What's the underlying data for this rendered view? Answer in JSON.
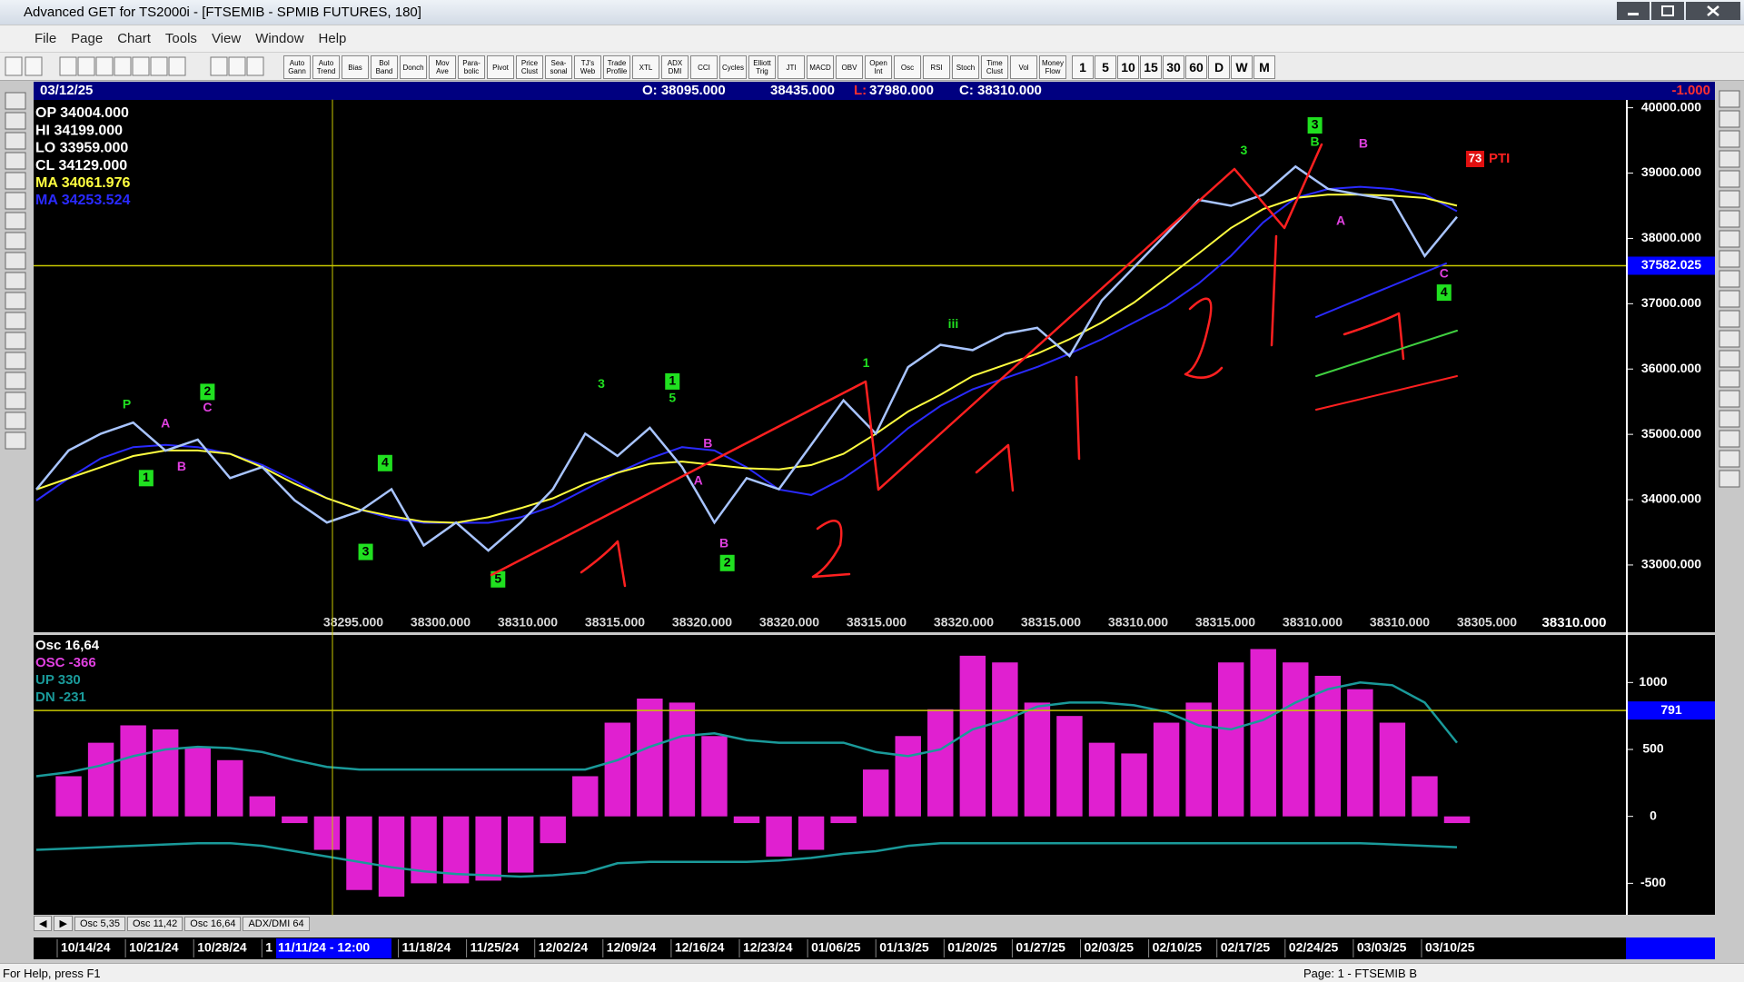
{
  "window": {
    "title": "Advanced GET for TS2000i - [FTSEMIB - SPMIB FUTURES, 180]"
  },
  "menu": [
    "File",
    "Page",
    "Chart",
    "Tools",
    "View",
    "Window",
    "Help"
  ],
  "toolbar": [
    "Auto Gann",
    "Auto Trend",
    "Bias",
    "Bol Band",
    "Donch",
    "Mov Ave",
    "Para-bolic",
    "Pivot",
    "Price Clust",
    "Sea-sonal",
    "TJ's Web",
    "Trade Profile",
    "XTL",
    "ADX DMI",
    "CCI",
    "Cycles",
    "Elliott Trig",
    "JTI",
    "MACD",
    "OBV",
    "Open Int",
    "Osc",
    "RSI",
    "Stoch",
    "Time Clust",
    "Vol",
    "Money Flow"
  ],
  "timeframes": [
    "1",
    "5",
    "10",
    "15",
    "30",
    "60",
    "D",
    "W",
    "M"
  ],
  "header": {
    "date": "03/12/25",
    "open": "O: 38095.000",
    "high": "38435.000",
    "low_label": "L:",
    "low": "37980.000",
    "close": "C: 38310.000",
    "change": "-1.000"
  },
  "price_pane": {
    "readout": [
      {
        "text": "OP 34004.000",
        "color": "#ffffff"
      },
      {
        "text": "HI 34199.000",
        "color": "#ffffff"
      },
      {
        "text": "LO 33959.000",
        "color": "#ffffff"
      },
      {
        "text": "CL 34129.000",
        "color": "#ffffff"
      },
      {
        "text": "MA 34061.976",
        "color": "#ffff40"
      },
      {
        "text": "MA 34253.524",
        "color": "#2a2aff"
      }
    ],
    "ylim": [
      31970,
      40120
    ],
    "yticks": [
      {
        "value": 33000,
        "label": "33000.000"
      },
      {
        "value": 34000,
        "label": "34000.000"
      },
      {
        "value": 35000,
        "label": "35000.000"
      },
      {
        "value": 36000,
        "label": "36000.000"
      },
      {
        "value": 37000,
        "label": "37000.000"
      },
      {
        "value": 38000,
        "label": "38000.000"
      },
      {
        "value": 39000,
        "label": "39000.000"
      },
      {
        "value": 40000,
        "label": "40000.000"
      }
    ],
    "close": {
      "color": "#a8c4ff",
      "values": [
        34157,
        34753,
        35010,
        35180,
        34750,
        34920,
        34330,
        34500,
        33990,
        33650,
        33820,
        34160,
        33300,
        33650,
        33220,
        33650,
        34160,
        35010,
        34670,
        35100,
        34500,
        33650,
        34330,
        34160,
        34840,
        35520,
        35010,
        36030,
        36370,
        36290,
        36540,
        36630,
        36200,
        37050,
        37560,
        38070,
        38590,
        38500,
        38670,
        39100,
        38760,
        38670,
        38590,
        37730,
        38330
      ]
    },
    "ma_yellow": {
      "color": "#ffff40",
      "values": [
        34157,
        34327,
        34497,
        34668,
        34753,
        34753,
        34702,
        34497,
        34242,
        34021,
        33850,
        33748,
        33663,
        33646,
        33731,
        33870,
        34021,
        34242,
        34412,
        34548,
        34583,
        34531,
        34480,
        34463,
        34531,
        34702,
        35008,
        35349,
        35605,
        35894,
        36065,
        36235,
        36457,
        36712,
        37019,
        37394,
        37769,
        38161,
        38450,
        38620,
        38671,
        38671,
        38654,
        38620,
        38501
      ]
    },
    "ma_blue": {
      "color": "#2a2aff",
      "values": [
        33986,
        34327,
        34634,
        34804,
        34838,
        34804,
        34702,
        34531,
        34293,
        34021,
        33850,
        33714,
        33646,
        33646,
        33646,
        33731,
        33901,
        34157,
        34412,
        34634,
        34804,
        34753,
        34497,
        34157,
        34072,
        34327,
        34668,
        35094,
        35434,
        35690,
        35860,
        36031,
        36235,
        36457,
        36712,
        36968,
        37309,
        37734,
        38245,
        38620,
        38756,
        38790,
        38756,
        38671,
        38416
      ]
    },
    "level": {
      "value": 37582.025,
      "label": "37582.025"
    },
    "bottom_labels": [
      "38295.000",
      "38300.000",
      "38310.000",
      "38315.000",
      "38320.000",
      "38320.000",
      "38315.000",
      "38320.000",
      "38315.000",
      "38310.000",
      "38315.000",
      "38310.000",
      "38310.000",
      "38305.000"
    ],
    "last_label": "38310.000",
    "pti": {
      "box": "73",
      "text": "PTI"
    },
    "waves": [
      {
        "text": "P",
        "color": "#20e020",
        "boxed": false,
        "i": 2.8,
        "price": 35450
      },
      {
        "text": "1",
        "color": "#20e020",
        "boxed": true,
        "i": 3.4,
        "price": 34330
      },
      {
        "text": "A",
        "color": "#e040e0",
        "boxed": false,
        "i": 4.0,
        "price": 35160
      },
      {
        "text": "B",
        "color": "#e040e0",
        "boxed": false,
        "i": 4.5,
        "price": 34500
      },
      {
        "text": "2",
        "color": "#20e020",
        "boxed": true,
        "i": 5.3,
        "price": 35650
      },
      {
        "text": "C",
        "color": "#e040e0",
        "boxed": false,
        "i": 5.3,
        "price": 35400
      },
      {
        "text": "3",
        "color": "#20e020",
        "boxed": true,
        "i": 10.2,
        "price": 33200
      },
      {
        "text": "4",
        "color": "#20e020",
        "boxed": true,
        "i": 10.8,
        "price": 34560
      },
      {
        "text": "5",
        "color": "#20e020",
        "boxed": true,
        "i": 14.3,
        "price": 32780
      },
      {
        "text": "3",
        "color": "#20e020",
        "boxed": false,
        "i": 17.5,
        "price": 35760
      },
      {
        "text": "1",
        "color": "#20e020",
        "boxed": true,
        "i": 19.7,
        "price": 35810
      },
      {
        "text": "5",
        "color": "#20e020",
        "boxed": false,
        "i": 19.7,
        "price": 35550
      },
      {
        "text": "A",
        "color": "#e040e0",
        "boxed": false,
        "i": 20.5,
        "price": 34280
      },
      {
        "text": "B",
        "color": "#e040e0",
        "boxed": false,
        "i": 20.8,
        "price": 34850
      },
      {
        "text": "B",
        "color": "#e040e0",
        "boxed": false,
        "i": 21.3,
        "price": 33320
      },
      {
        "text": "2",
        "color": "#20e020",
        "boxed": true,
        "i": 21.4,
        "price": 33030
      },
      {
        "text": "1",
        "color": "#20e020",
        "boxed": false,
        "i": 25.7,
        "price": 36080
      },
      {
        "text": "iii",
        "color": "#20e020",
        "boxed": false,
        "i": 28.4,
        "price": 36680
      },
      {
        "text": "3",
        "color": "#20e020",
        "boxed": false,
        "i": 37.4,
        "price": 39340
      },
      {
        "text": "3",
        "color": "#20e020",
        "boxed": true,
        "i": 39.6,
        "price": 39730
      },
      {
        "text": "B",
        "color": "#20e020",
        "boxed": false,
        "i": 39.6,
        "price": 39470
      },
      {
        "text": "B",
        "color": "#e040e0",
        "boxed": false,
        "i": 41.1,
        "price": 39440
      },
      {
        "text": "A",
        "color": "#e040e0",
        "boxed": false,
        "i": 40.4,
        "price": 38260
      },
      {
        "text": "C",
        "color": "#e040e0",
        "boxed": false,
        "i": 43.6,
        "price": 37450
      },
      {
        "text": "4",
        "color": "#20e020",
        "boxed": true,
        "i": 43.6,
        "price": 37170
      }
    ]
  },
  "osc_pane": {
    "legend": [
      {
        "text": "Osc 16,64",
        "color": "#ffffff"
      },
      {
        "text": "OSC -366",
        "color": "#e040e0"
      },
      {
        "text": "UP  330",
        "color": "#1a9a9a"
      },
      {
        "text": "DN  -231",
        "color": "#1a9a9a"
      }
    ],
    "ylim": [
      -735,
      1355
    ],
    "yticks": [
      1000,
      500,
      0,
      -500
    ],
    "osc": {
      "color": "#e020d0",
      "values": [
        0,
        300,
        550,
        680,
        650,
        520,
        420,
        150,
        -50,
        -250,
        -550,
        -600,
        -500,
        -500,
        -480,
        -420,
        -200,
        300,
        700,
        880,
        850,
        600,
        -50,
        -300,
        -250,
        -50,
        350,
        600,
        800,
        1200,
        1150,
        850,
        750,
        550,
        470,
        700,
        850,
        1150,
        1250,
        1150,
        1050,
        950,
        700,
        300,
        -50
      ]
    },
    "up": {
      "color": "#1a9a9a",
      "values": [
        300,
        330,
        380,
        450,
        500,
        520,
        510,
        480,
        420,
        370,
        350,
        350,
        350,
        350,
        350,
        350,
        350,
        350,
        420,
        520,
        600,
        620,
        570,
        550,
        550,
        550,
        480,
        450,
        500,
        650,
        720,
        820,
        850,
        850,
        830,
        780,
        680,
        650,
        720,
        850,
        950,
        1000,
        980,
        850,
        550
      ]
    },
    "dn": {
      "color": "#1a9a9a",
      "values": [
        -250,
        -240,
        -230,
        -220,
        -210,
        -200,
        -200,
        -220,
        -260,
        -300,
        -340,
        -380,
        -410,
        -430,
        -440,
        -450,
        -440,
        -420,
        -350,
        -340,
        -340,
        -340,
        -340,
        -330,
        -310,
        -280,
        -260,
        -220,
        -200,
        -200,
        -200,
        -200,
        -200,
        -200,
        -200,
        -200,
        -200,
        -200,
        -200,
        -200,
        -200,
        -200,
        -210,
        -220,
        -230
      ]
    },
    "level": {
      "value": 791,
      "label": "791"
    }
  },
  "tabs": [
    "Osc 5,35",
    "Osc 11,42",
    "Osc 16,64",
    "ADX/DMI 64"
  ],
  "date_axis": {
    "labels": [
      "10/14/24",
      "10/21/24",
      "10/28/24",
      "1",
      null,
      "11/18/24",
      "11/25/24",
      "12/02/24",
      "12/09/24",
      "12/16/24",
      "12/23/24",
      "01/06/25",
      "01/13/25",
      "01/20/25",
      "01/27/25",
      "02/03/25",
      "02/10/25",
      "02/17/25",
      "02/24/25",
      "03/03/25",
      "03/10/25"
    ],
    "cursor": "11/11/24 - 12:00"
  },
  "status": {
    "left": "For Help, press F1",
    "right": "Page: 1 - FTSEMIB B"
  }
}
